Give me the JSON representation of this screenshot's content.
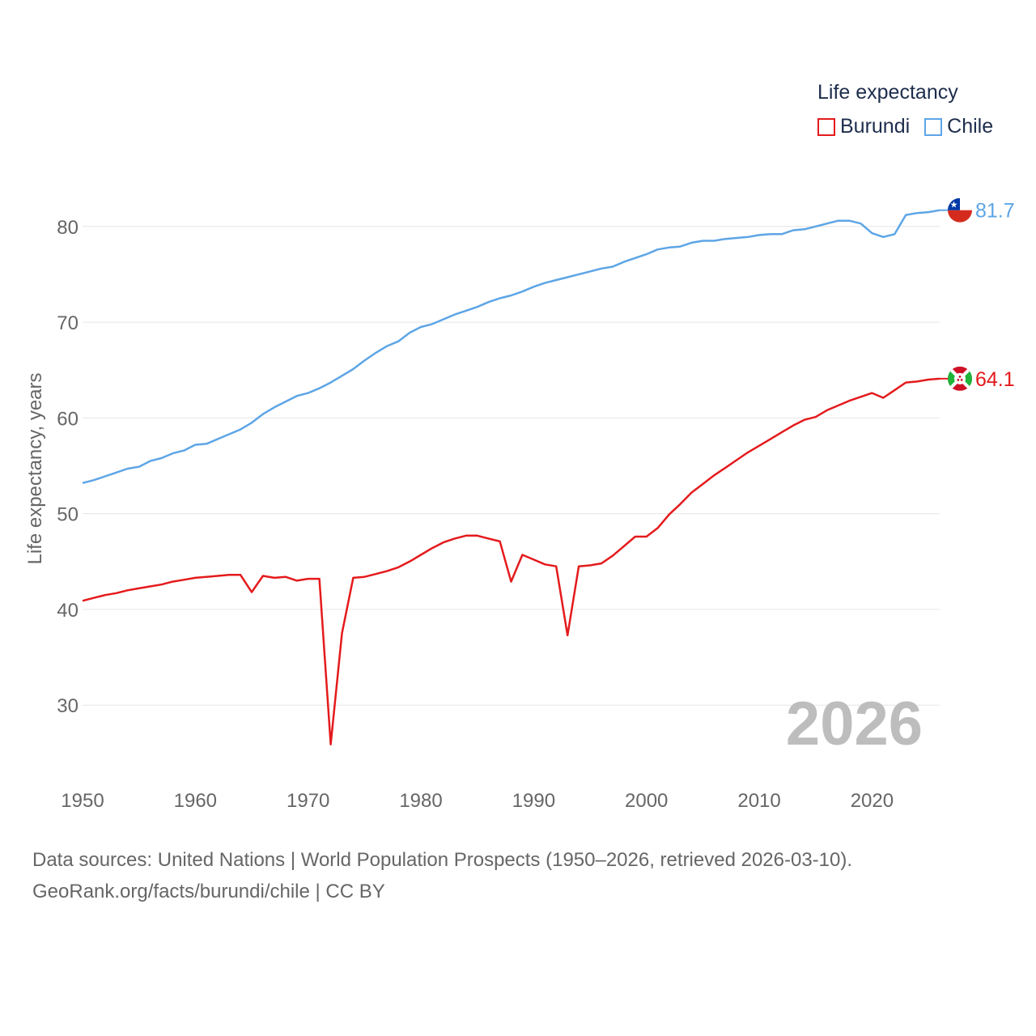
{
  "legend": {
    "title": "Life expectancy"
  },
  "source": {
    "line1": "Data sources: United Nations | World Population Prospects (1950–2026, retrieved 2026-03-10).",
    "line2": "GeoRank.org/facts/burundi/chile | CC BY"
  },
  "chart_data": {
    "type": "line",
    "title": "Life expectancy",
    "xlabel": "",
    "ylabel": "Life expectancy, years",
    "year_label": "2026",
    "xlim": [
      1950,
      2026
    ],
    "ylim": [
      23,
      87
    ],
    "xticks": [
      1950,
      1960,
      1970,
      1980,
      1990,
      2000,
      2010,
      2020
    ],
    "yticks": [
      30,
      40,
      50,
      60,
      70,
      80
    ],
    "x": [
      1950,
      1951,
      1952,
      1953,
      1954,
      1955,
      1956,
      1957,
      1958,
      1959,
      1960,
      1961,
      1962,
      1963,
      1964,
      1965,
      1966,
      1967,
      1968,
      1969,
      1970,
      1971,
      1972,
      1973,
      1974,
      1975,
      1976,
      1977,
      1978,
      1979,
      1980,
      1981,
      1982,
      1983,
      1984,
      1985,
      1986,
      1987,
      1988,
      1989,
      1990,
      1991,
      1992,
      1993,
      1994,
      1995,
      1996,
      1997,
      1998,
      1999,
      2000,
      2001,
      2002,
      2003,
      2004,
      2005,
      2006,
      2007,
      2008,
      2009,
      2010,
      2011,
      2012,
      2013,
      2014,
      2015,
      2016,
      2017,
      2018,
      2019,
      2020,
      2021,
      2022,
      2023,
      2024,
      2025,
      2026
    ],
    "series": [
      {
        "name": "Burundi",
        "color": "#e41a1c",
        "end_label": "64.1",
        "flag": "burundi-flag-icon",
        "values": [
          40.9,
          41.2,
          41.5,
          41.7,
          42.0,
          42.2,
          42.4,
          42.6,
          42.9,
          43.1,
          43.3,
          43.4,
          43.5,
          43.6,
          43.6,
          41.8,
          43.5,
          43.3,
          43.4,
          43.0,
          43.2,
          43.2,
          25.9,
          37.5,
          43.3,
          43.4,
          43.7,
          44.0,
          44.4,
          45.0,
          45.7,
          46.4,
          47.0,
          47.4,
          47.7,
          47.7,
          47.4,
          47.1,
          42.9,
          45.7,
          45.2,
          44.7,
          44.5,
          37.3,
          44.5,
          44.6,
          44.8,
          45.6,
          46.6,
          47.6,
          47.6,
          48.5,
          49.9,
          51.0,
          52.2,
          53.1,
          54.0,
          54.8,
          55.6,
          56.4,
          57.1,
          57.8,
          58.5,
          59.2,
          59.8,
          60.1,
          60.8,
          61.3,
          61.8,
          62.2,
          62.6,
          62.1,
          62.9,
          63.7,
          63.8,
          64.0,
          64.1
        ]
      },
      {
        "name": "Chile",
        "color": "#5da5e6",
        "end_label": "81.7",
        "flag": "chile-flag-icon",
        "values": [
          53.2,
          53.5,
          53.9,
          54.3,
          54.7,
          54.9,
          55.5,
          55.8,
          56.3,
          56.6,
          57.2,
          57.3,
          57.8,
          58.3,
          58.8,
          59.5,
          60.4,
          61.1,
          61.7,
          62.3,
          62.6,
          63.1,
          63.7,
          64.4,
          65.1,
          66.0,
          66.8,
          67.5,
          68.0,
          68.9,
          69.5,
          69.8,
          70.3,
          70.8,
          71.2,
          71.6,
          72.1,
          72.5,
          72.8,
          73.2,
          73.7,
          74.1,
          74.4,
          74.7,
          75.0,
          75.3,
          75.6,
          75.8,
          76.3,
          76.7,
          77.1,
          77.6,
          77.8,
          77.9,
          78.3,
          78.5,
          78.5,
          78.7,
          78.8,
          78.9,
          79.1,
          79.2,
          79.2,
          79.6,
          79.7,
          80.0,
          80.3,
          80.6,
          80.6,
          80.3,
          79.3,
          78.9,
          79.2,
          81.2,
          81.4,
          81.5,
          81.7
        ]
      }
    ]
  }
}
